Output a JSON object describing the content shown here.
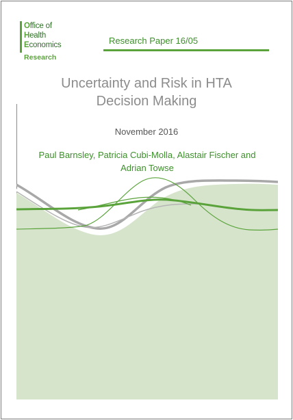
{
  "logo": {
    "line1_cap": "O",
    "line1_rest": "ffice of",
    "line2_cap": "H",
    "line2_rest": "ealth",
    "line3_cap": "E",
    "line3_rest": "conomics",
    "research": "Research"
  },
  "header": {
    "paper_label": "Research Paper 16/05"
  },
  "title": {
    "line1": "Uncertainty and Risk in HTA",
    "line2": "Decision Making"
  },
  "date": "November 2016",
  "authors": {
    "line1": "Paul Barnsley, Patricia Cubi-Molla, Alastair Fischer and",
    "line2": "Adrian Towse"
  },
  "colors": {
    "brand_green": "#5aa33b",
    "dark_green": "#3c8f2a",
    "light_green_fill": "#d6e4cc",
    "grey_curve": "#a8a8a8",
    "title_grey": "#8c8c8c"
  }
}
